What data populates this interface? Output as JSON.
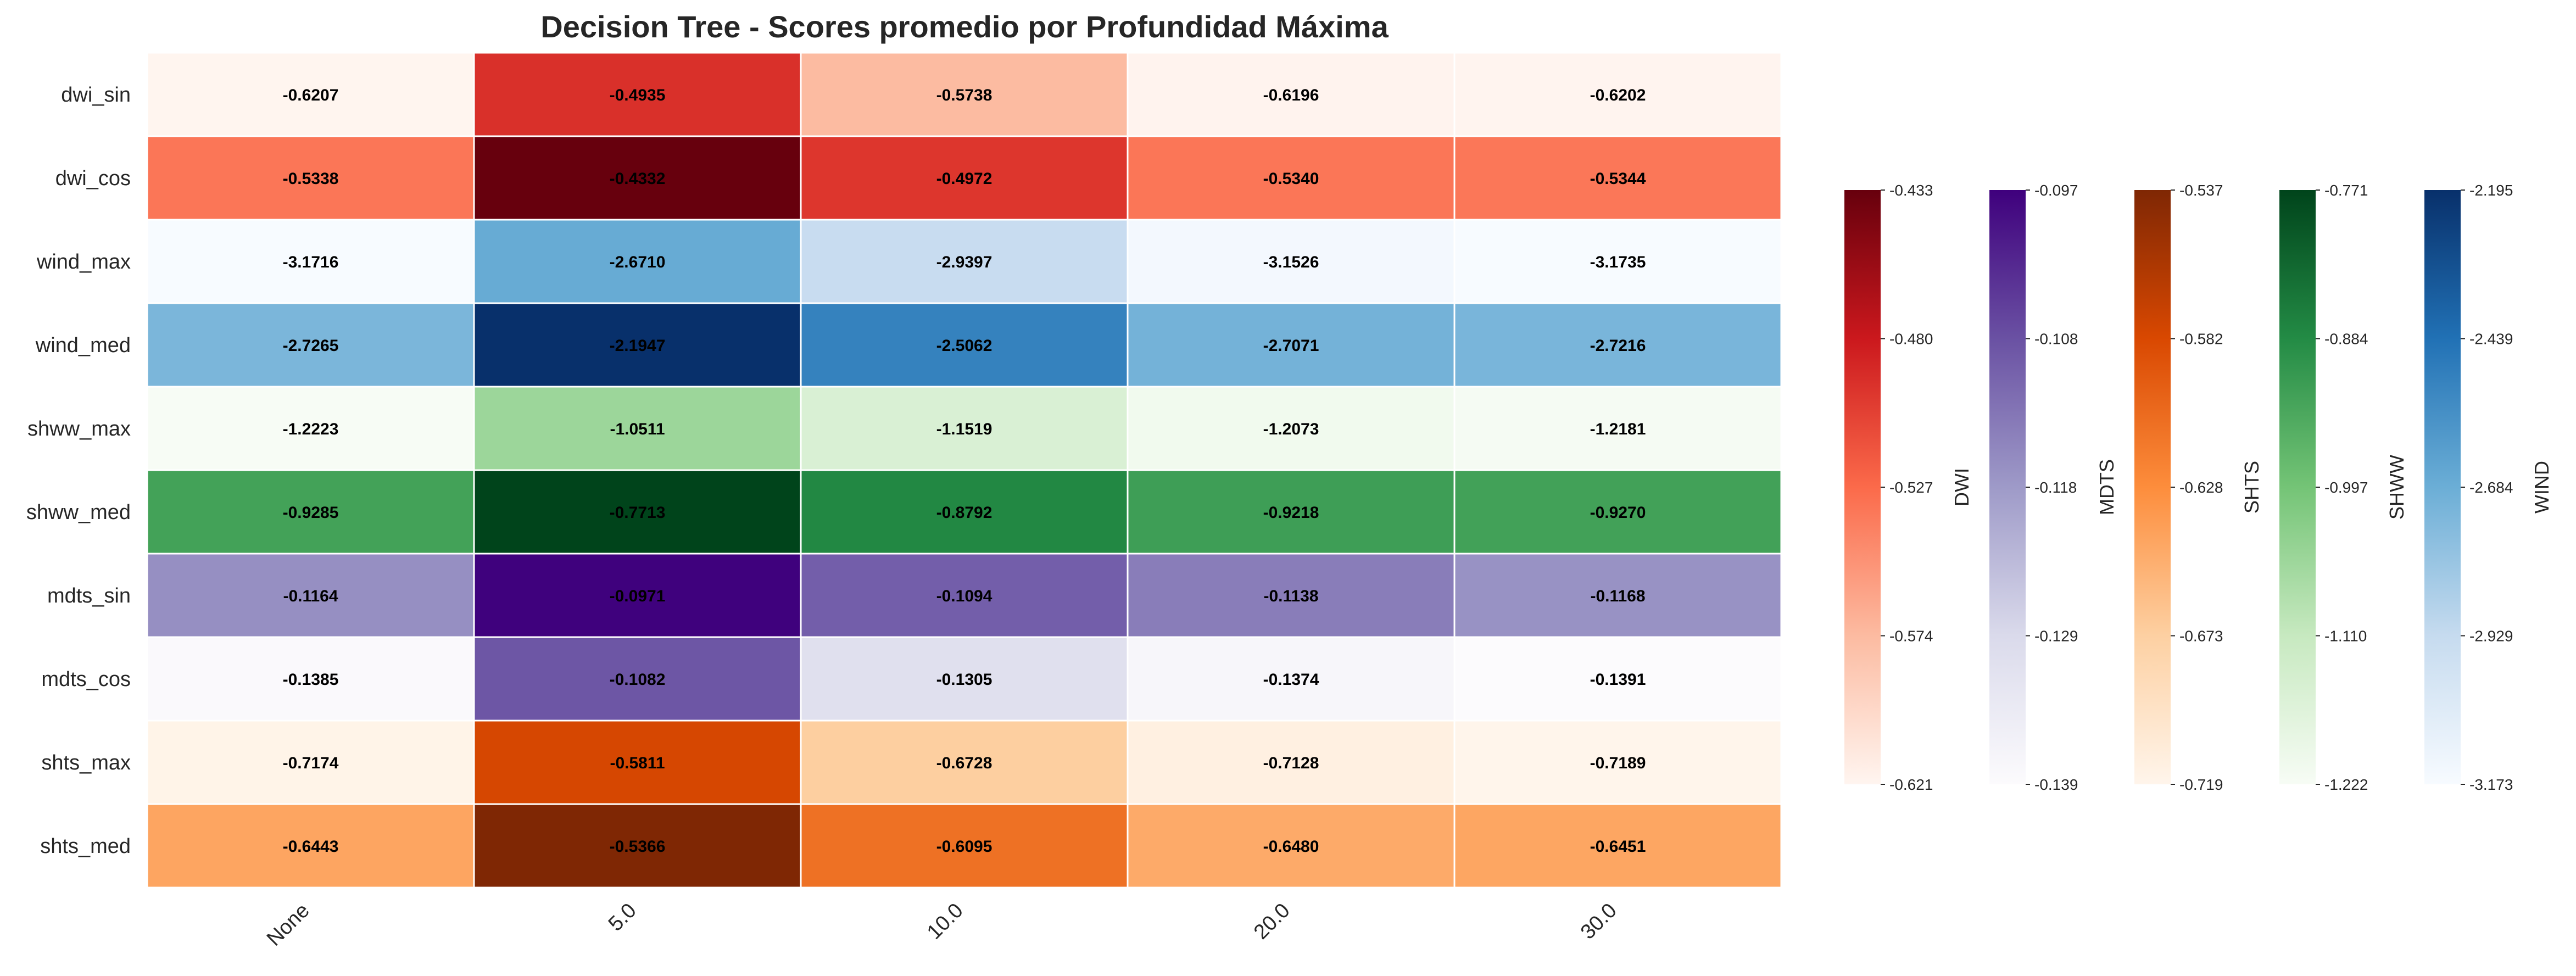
{
  "chart_data": {
    "type": "heatmap",
    "title": "Decision Tree - Scores promedio por Profundidad Máxima",
    "xlabel": "",
    "ylabel": "",
    "x_categories": [
      "None",
      "5.0",
      "10.0",
      "20.0",
      "30.0"
    ],
    "y_categories": [
      "dwi_sin",
      "dwi_cos",
      "wind_max",
      "wind_med",
      "shww_max",
      "shww_med",
      "mdts_sin",
      "mdts_cos",
      "shts_max",
      "shts_med"
    ],
    "row_groups": [
      "DWI",
      "DWI",
      "WIND",
      "WIND",
      "SHWW",
      "SHWW",
      "MDTS",
      "MDTS",
      "SHTS",
      "SHTS"
    ],
    "values": [
      [
        -0.6207,
        -0.4935,
        -0.5738,
        -0.6196,
        -0.6202
      ],
      [
        -0.5338,
        -0.4332,
        -0.4972,
        -0.534,
        -0.5344
      ],
      [
        -3.1716,
        -2.671,
        -2.9397,
        -3.1526,
        -3.1735
      ],
      [
        -2.7265,
        -2.1947,
        -2.5062,
        -2.7071,
        -2.7216
      ],
      [
        -1.2223,
        -1.0511,
        -1.1519,
        -1.2073,
        -1.2181
      ],
      [
        -0.9285,
        -0.7713,
        -0.8792,
        -0.9218,
        -0.927
      ],
      [
        -0.1164,
        -0.0971,
        -0.1094,
        -0.1138,
        -0.1168
      ],
      [
        -0.1385,
        -0.1082,
        -0.1305,
        -0.1374,
        -0.1391
      ],
      [
        -0.7174,
        -0.5811,
        -0.6728,
        -0.7128,
        -0.7189
      ],
      [
        -0.6443,
        -0.5366,
        -0.6095,
        -0.648,
        -0.6451
      ]
    ],
    "value_labels": [
      [
        "-0.6207",
        "-0.4935",
        "-0.5738",
        "-0.6196",
        "-0.6202"
      ],
      [
        "-0.5338",
        "-0.4332",
        "-0.4972",
        "-0.5340",
        "-0.5344"
      ],
      [
        "-3.1716",
        "-2.6710",
        "-2.9397",
        "-3.1526",
        "-3.1735"
      ],
      [
        "-2.7265",
        "-2.1947",
        "-2.5062",
        "-2.7071",
        "-2.7216"
      ],
      [
        "-1.2223",
        "-1.0511",
        "-1.1519",
        "-1.2073",
        "-1.2181"
      ],
      [
        "-0.9285",
        "-0.7713",
        "-0.8792",
        "-0.9218",
        "-0.9270"
      ],
      [
        "-0.1164",
        "-0.0971",
        "-0.1094",
        "-0.1138",
        "-0.1168"
      ],
      [
        "-0.1385",
        "-0.1082",
        "-0.1305",
        "-0.1374",
        "-0.1391"
      ],
      [
        "-0.7174",
        "-0.5811",
        "-0.6728",
        "-0.7128",
        "-0.7189"
      ],
      [
        "-0.6443",
        "-0.5366",
        "-0.6095",
        "-0.6480",
        "-0.6451"
      ]
    ],
    "colorbars": [
      {
        "label": "DWI",
        "colormap": "Reds",
        "colors": [
          "#fff5f0",
          "#fcbba1",
          "#fb6a4a",
          "#cb181d",
          "#67000d"
        ],
        "range": [
          -0.621,
          -0.433
        ],
        "ticks": [
          "-0.433",
          "-0.480",
          "-0.527",
          "-0.574",
          "-0.621"
        ]
      },
      {
        "label": "MDTS",
        "colormap": "Purples",
        "colors": [
          "#fcfbfd",
          "#dadaeb",
          "#9e9ac8",
          "#6a51a3",
          "#3f007d"
        ],
        "range": [
          -0.139,
          -0.097
        ],
        "ticks": [
          "-0.097",
          "-0.108",
          "-0.118",
          "-0.129",
          "-0.139"
        ]
      },
      {
        "label": "SHTS",
        "colormap": "Oranges",
        "colors": [
          "#fff5eb",
          "#fdd0a2",
          "#fd8d3c",
          "#d94801",
          "#7f2704"
        ],
        "range": [
          -0.719,
          -0.537
        ],
        "ticks": [
          "-0.537",
          "-0.582",
          "-0.628",
          "-0.673",
          "-0.719"
        ]
      },
      {
        "label": "SHWW",
        "colormap": "Greens",
        "colors": [
          "#f7fcf5",
          "#c7e9c0",
          "#74c476",
          "#238b45",
          "#00441b"
        ],
        "range": [
          -1.222,
          -0.771
        ],
        "ticks": [
          "-0.771",
          "-0.884",
          "-0.997",
          "-1.110",
          "-1.222"
        ]
      },
      {
        "label": "WIND",
        "colormap": "Blues",
        "colors": [
          "#f7fbff",
          "#c6dbef",
          "#6baed6",
          "#2171b5",
          "#08306b"
        ],
        "range": [
          -3.173,
          -2.195
        ],
        "ticks": [
          "-2.195",
          "-2.439",
          "-2.684",
          "-2.929",
          "-3.173"
        ]
      }
    ],
    "grid": false,
    "legend": "right"
  }
}
